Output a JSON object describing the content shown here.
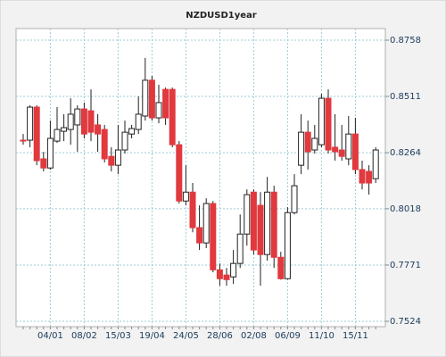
{
  "chart_data": {
    "type": "candlestick",
    "title": "NZDUSD1year",
    "categories": [
      null,
      null,
      null,
      null,
      "04/01",
      null,
      null,
      null,
      null,
      "08/02",
      null,
      null,
      null,
      null,
      "15/03",
      null,
      null,
      null,
      null,
      "19/04",
      null,
      null,
      null,
      null,
      "24/05",
      null,
      null,
      null,
      null,
      "28/06",
      null,
      null,
      null,
      null,
      "02/08",
      null,
      null,
      null,
      null,
      "06/09",
      null,
      null,
      null,
      null,
      "11/10",
      null,
      null,
      null,
      null,
      "15/11",
      null,
      null,
      null
    ],
    "open": [
      0.8319,
      0.8319,
      0.8464,
      0.8237,
      0.8197,
      0.8315,
      0.8358,
      0.8366,
      0.8386,
      0.8456,
      0.8448,
      0.8386,
      0.8366,
      0.8248,
      0.8209,
      0.8276,
      0.8346,
      0.8366,
      0.8425,
      0.8582,
      0.8417,
      0.8542,
      0.8542,
      0.8299,
      0.8052,
      0.8091,
      0.7935,
      0.7868,
      0.8041,
      0.775,
      0.7727,
      0.7719,
      0.7778,
      0.7907,
      0.8091,
      0.8033,
      0.7817,
      0.8091,
      0.7805,
      0.7711,
      0.8001,
      0.8209,
      0.8354,
      0.8276,
      0.8299,
      0.8503,
      0.8288,
      0.8276,
      0.8237,
      0.8346,
      0.819,
      0.8182,
      0.815
    ],
    "high": [
      0.8346,
      0.8472,
      0.8472,
      0.8268,
      0.8405,
      0.8464,
      0.8433,
      0.8503,
      0.8472,
      0.8484,
      0.8542,
      0.8433,
      0.8386,
      0.8288,
      0.8386,
      0.8405,
      0.8386,
      0.8511,
      0.868,
      0.8601,
      0.8562,
      0.855,
      0.855,
      0.8315,
      0.8209,
      0.8131,
      0.8033,
      0.8064,
      0.8052,
      0.7778,
      0.7758,
      0.7837,
      0.7993,
      0.8103,
      0.8103,
      0.8091,
      0.8158,
      0.8119,
      0.7829,
      0.8025,
      0.817,
      0.8433,
      0.8405,
      0.8386,
      0.8523,
      0.8542,
      0.8433,
      0.8386,
      0.8425,
      0.8417,
      0.8229,
      0.8209,
      0.8288
    ],
    "low": [
      0.8299,
      0.8288,
      0.8209,
      0.8182,
      0.819,
      0.8307,
      0.8315,
      0.8299,
      0.8268,
      0.8327,
      0.8315,
      0.8268,
      0.8221,
      0.8182,
      0.817,
      0.826,
      0.8327,
      0.8346,
      0.8405,
      0.8405,
      0.8393,
      0.8386,
      0.8288,
      0.8041,
      0.8033,
      0.7915,
      0.7837,
      0.7845,
      0.7739,
      0.768,
      0.768,
      0.7688,
      0.7758,
      0.7856,
      0.7817,
      0.768,
      0.779,
      0.7758,
      0.7707,
      0.7707,
      0.7993,
      0.817,
      0.819,
      0.826,
      0.8288,
      0.826,
      0.8229,
      0.8229,
      0.8209,
      0.817,
      0.8103,
      0.808,
      0.8131
    ],
    "close": [
      0.8315,
      0.8464,
      0.8229,
      0.8197,
      0.8327,
      0.8366,
      0.8374,
      0.8433,
      0.8456,
      0.8346,
      0.8354,
      0.8346,
      0.8237,
      0.8209,
      0.8276,
      0.8354,
      0.837,
      0.8433,
      0.8582,
      0.8417,
      0.8484,
      0.8417,
      0.8299,
      0.8052,
      0.8091,
      0.7935,
      0.7868,
      0.8041,
      0.775,
      0.7711,
      0.7707,
      0.7778,
      0.7907,
      0.808,
      0.7837,
      0.7817,
      0.8091,
      0.7805,
      0.7711,
      0.8001,
      0.8119,
      0.8354,
      0.8268,
      0.8327,
      0.8503,
      0.8276,
      0.8268,
      0.8248,
      0.8346,
      0.819,
      0.8131,
      0.8131,
      0.8276
    ],
    "up_color": "#ffffff",
    "down_color": "#e0393e",
    "ylim": [
      0.7524,
      0.8758
    ],
    "yticks": [
      0.7524,
      0.7771,
      0.8018,
      0.8264,
      0.8511,
      0.8758
    ],
    "grid": true
  }
}
